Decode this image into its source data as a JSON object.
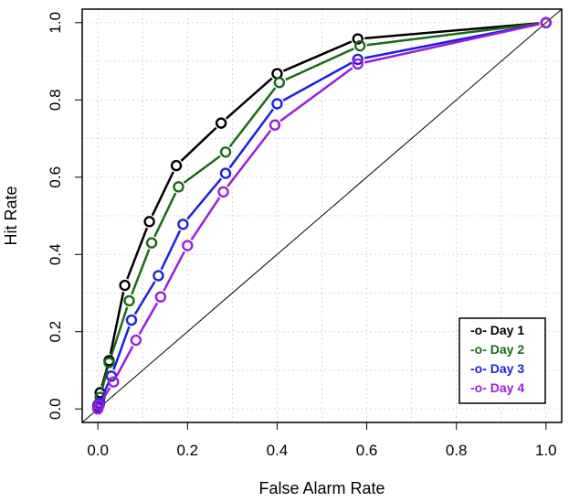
{
  "chart_data": {
    "type": "line",
    "title": "",
    "xlabel": "False Alarm Rate",
    "ylabel": "Hit Rate",
    "xlim": [
      0,
      1
    ],
    "ylim": [
      0,
      1
    ],
    "xticks": [
      "0.0",
      "0.2",
      "0.4",
      "0.6",
      "0.8",
      "1.0"
    ],
    "yticks": [
      "0.0",
      "0.2",
      "0.4",
      "0.6",
      "0.8",
      "1.0"
    ],
    "grid": true,
    "legend_position": "bottom-right",
    "reference_line": "diagonal",
    "series": [
      {
        "name": "Day 1",
        "legend_label": "-o- Day 1",
        "color": "#000000",
        "x": [
          0.0,
          0.005,
          0.025,
          0.06,
          0.115,
          0.175,
          0.275,
          0.4,
          0.58,
          1.0
        ],
        "y": [
          0.01,
          0.042,
          0.125,
          0.32,
          0.485,
          0.63,
          0.74,
          0.868,
          0.958,
          1.0
        ]
      },
      {
        "name": "Day 2",
        "legend_label": "-o- Day 2",
        "color": "#1a6b1a",
        "x": [
          0.0,
          0.005,
          0.025,
          0.07,
          0.12,
          0.18,
          0.285,
          0.405,
          0.585,
          1.0
        ],
        "y": [
          0.008,
          0.03,
          0.12,
          0.28,
          0.43,
          0.575,
          0.665,
          0.845,
          0.94,
          1.0
        ]
      },
      {
        "name": "Day 3",
        "legend_label": "-o- Day 3",
        "color": "#1f1fe0",
        "x": [
          0.0,
          0.004,
          0.03,
          0.075,
          0.135,
          0.19,
          0.285,
          0.4,
          0.58,
          1.0
        ],
        "y": [
          0.005,
          0.015,
          0.085,
          0.23,
          0.345,
          0.478,
          0.61,
          0.79,
          0.905,
          1.0
        ]
      },
      {
        "name": "Day 4",
        "legend_label": "-o- Day 4",
        "color": "#9b1fd6",
        "x": [
          0.0,
          0.003,
          0.035,
          0.085,
          0.14,
          0.2,
          0.28,
          0.395,
          0.58,
          1.0
        ],
        "y": [
          0.0,
          0.01,
          0.07,
          0.178,
          0.29,
          0.423,
          0.562,
          0.735,
          0.893,
          1.0
        ]
      }
    ]
  }
}
